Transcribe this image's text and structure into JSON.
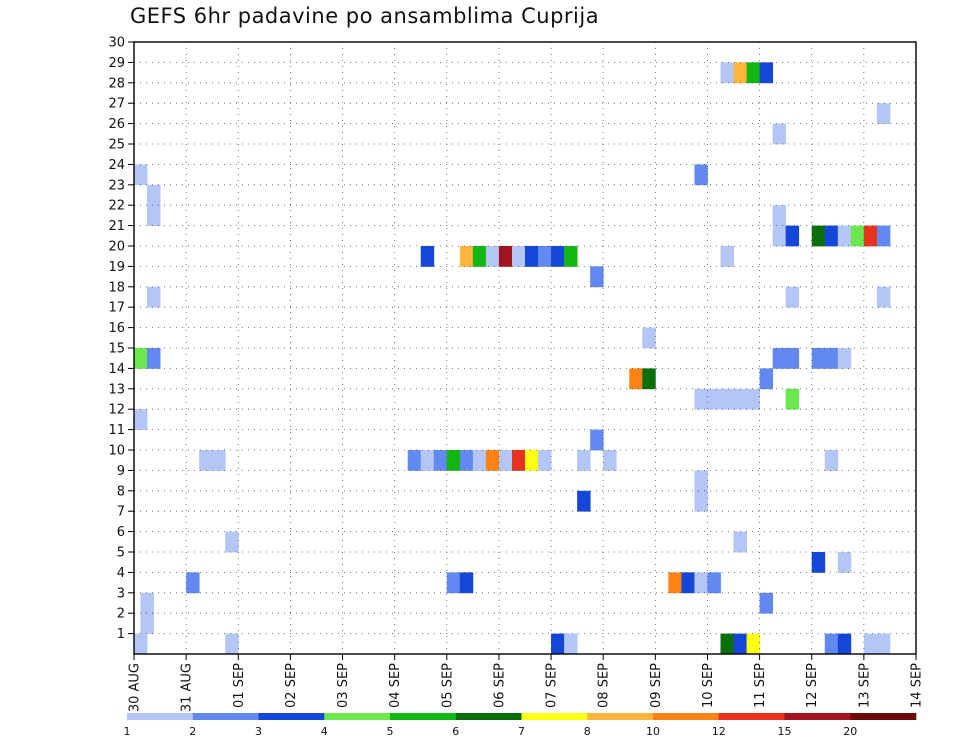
{
  "chart_data": {
    "type": "heatmap",
    "title": "GEFS 6hr padavine po ansamblima Cuprija",
    "x_ticks": [
      "30 AUG",
      "31 AUG",
      "01 SEP",
      "02 SEP",
      "03 SEP",
      "04 SEP",
      "05 SEP",
      "06 SEP",
      "07 SEP",
      "08 SEP",
      "09 SEP",
      "10 SEP",
      "11 SEP",
      "12 SEP",
      "13 SEP",
      "14 SEP"
    ],
    "y_ticks": [
      1,
      2,
      3,
      4,
      5,
      6,
      7,
      8,
      9,
      10,
      11,
      12,
      13,
      14,
      15,
      16,
      17,
      18,
      19,
      20,
      21,
      22,
      23,
      24,
      25,
      26,
      27,
      28,
      29,
      30
    ],
    "xlim": [
      0,
      60
    ],
    "ylim": [
      0,
      30
    ],
    "grid": true,
    "legend": "bottom",
    "colorbar": {
      "labels": [
        "1",
        "2",
        "3",
        "4",
        "5",
        "6",
        "7",
        "8",
        "10",
        "12",
        "15",
        "20"
      ],
      "colors": [
        "#b3c6f5",
        "#6189f0",
        "#1446d8",
        "#6ae84e",
        "#12b812",
        "#0a6e0a",
        "#ffff14",
        "#ffb43c",
        "#ff8214",
        "#e6321e",
        "#a0141e",
        "#6e0a0a"
      ]
    },
    "cells": [
      [
        0.5,
        0,
        "#b3c6f5"
      ],
      [
        1,
        1,
        "#b3c6f5"
      ],
      [
        1,
        2,
        "#b3c6f5"
      ],
      [
        0.5,
        11,
        "#b3c6f5"
      ],
      [
        0.5,
        14,
        "#6ae84e"
      ],
      [
        1.5,
        14,
        "#6189f0"
      ],
      [
        1.5,
        17,
        "#b3c6f5"
      ],
      [
        1.5,
        21,
        "#b3c6f5"
      ],
      [
        1.5,
        22,
        "#b3c6f5"
      ],
      [
        0.5,
        23,
        "#b3c6f5"
      ],
      [
        4.5,
        3,
        "#6189f0"
      ],
      [
        5.5,
        9,
        "#b3c6f5"
      ],
      [
        6.5,
        9,
        "#b3c6f5"
      ],
      [
        7.5,
        5,
        "#b3c6f5"
      ],
      [
        7.5,
        0,
        "#b3c6f5"
      ],
      [
        21.5,
        9,
        "#6189f0"
      ],
      [
        22.5,
        9,
        "#b3c6f5"
      ],
      [
        23.5,
        9,
        "#6189f0"
      ],
      [
        24.5,
        9,
        "#12b812"
      ],
      [
        25.5,
        9,
        "#6189f0"
      ],
      [
        26.5,
        9,
        "#b3c6f5"
      ],
      [
        27.5,
        9,
        "#ff8214"
      ],
      [
        28.5,
        9,
        "#b3c6f5"
      ],
      [
        29.5,
        9,
        "#e6321e"
      ],
      [
        30.5,
        9,
        "#ffff14"
      ],
      [
        31.5,
        9,
        "#b3c6f5"
      ],
      [
        22.5,
        19,
        "#1446d8"
      ],
      [
        25.5,
        19,
        "#ffb43c"
      ],
      [
        26.5,
        19,
        "#12b812"
      ],
      [
        27.5,
        19,
        "#b3c6f5"
      ],
      [
        28.5,
        19,
        "#a0141e"
      ],
      [
        29.5,
        19,
        "#b3c6f5"
      ],
      [
        30.5,
        19,
        "#1446d8"
      ],
      [
        31.5,
        19,
        "#6189f0"
      ],
      [
        32.5,
        19,
        "#1446d8"
      ],
      [
        33.5,
        19,
        "#12b812"
      ],
      [
        24.5,
        3,
        "#6189f0"
      ],
      [
        25.5,
        3,
        "#1446d8"
      ],
      [
        32.5,
        0,
        "#1446d8"
      ],
      [
        33.5,
        0,
        "#b3c6f5"
      ],
      [
        34.5,
        7,
        "#1446d8"
      ],
      [
        34.5,
        9,
        "#b3c6f5"
      ],
      [
        35.5,
        10,
        "#6189f0"
      ],
      [
        35.5,
        18,
        "#6189f0"
      ],
      [
        36.5,
        9,
        "#b3c6f5"
      ],
      [
        38.5,
        13,
        "#ff8214"
      ],
      [
        39.5,
        13,
        "#0a6e0a"
      ],
      [
        39.5,
        15,
        "#b3c6f5"
      ],
      [
        41.5,
        3,
        "#ff8214"
      ],
      [
        42.5,
        3,
        "#1446d8"
      ],
      [
        43.5,
        3,
        "#b3c6f5"
      ],
      [
        44.5,
        3,
        "#6189f0"
      ],
      [
        43.5,
        7,
        "#b3c6f5"
      ],
      [
        43.5,
        8,
        "#b3c6f5"
      ],
      [
        43.5,
        12,
        "#b3c6f5"
      ],
      [
        44.5,
        12,
        "#b3c6f5"
      ],
      [
        43.5,
        23,
        "#6189f0"
      ],
      [
        45.5,
        19,
        "#b3c6f5"
      ],
      [
        45.5,
        12,
        "#b3c6f5"
      ],
      [
        46.5,
        12,
        "#b3c6f5"
      ],
      [
        47.5,
        12,
        "#b3c6f5"
      ],
      [
        45.5,
        0,
        "#0a6e0a"
      ],
      [
        46.5,
        0,
        "#1446d8"
      ],
      [
        47.5,
        0,
        "#ffff14"
      ],
      [
        46.5,
        5,
        "#b3c6f5"
      ],
      [
        48.5,
        2,
        "#6189f0"
      ],
      [
        48.5,
        13,
        "#6189f0"
      ],
      [
        49.5,
        14,
        "#6189f0"
      ],
      [
        50.5,
        14,
        "#6189f0"
      ],
      [
        50.5,
        12,
        "#6ae84e"
      ],
      [
        50.5,
        17,
        "#b3c6f5"
      ],
      [
        45.5,
        28,
        "#b3c6f5"
      ],
      [
        46.5,
        28,
        "#ffb43c"
      ],
      [
        47.5,
        28,
        "#12b812"
      ],
      [
        48.5,
        28,
        "#1446d8"
      ],
      [
        49.5,
        25,
        "#b3c6f5"
      ],
      [
        49.5,
        20,
        "#b3c6f5"
      ],
      [
        49.5,
        21,
        "#b3c6f5"
      ],
      [
        50.5,
        20,
        "#1446d8"
      ],
      [
        52.5,
        14,
        "#6189f0"
      ],
      [
        53.5,
        14,
        "#6189f0"
      ],
      [
        54.5,
        14,
        "#b3c6f5"
      ],
      [
        52.5,
        20,
        "#0a6e0a"
      ],
      [
        53.5,
        20,
        "#1446d8"
      ],
      [
        54.5,
        20,
        "#b3c6f5"
      ],
      [
        55.5,
        20,
        "#6ae84e"
      ],
      [
        56.5,
        20,
        "#e6321e"
      ],
      [
        57.5,
        20,
        "#6189f0"
      ],
      [
        52.5,
        4,
        "#1446d8"
      ],
      [
        54.5,
        4,
        "#b3c6f5"
      ],
      [
        53.5,
        9,
        "#b3c6f5"
      ],
      [
        53.5,
        0,
        "#6189f0"
      ],
      [
        54.5,
        0,
        "#1446d8"
      ],
      [
        56.5,
        0,
        "#b3c6f5"
      ],
      [
        57.5,
        0,
        "#b3c6f5"
      ],
      [
        57.5,
        17,
        "#b3c6f5"
      ],
      [
        57.5,
        26,
        "#b3c6f5"
      ]
    ]
  }
}
